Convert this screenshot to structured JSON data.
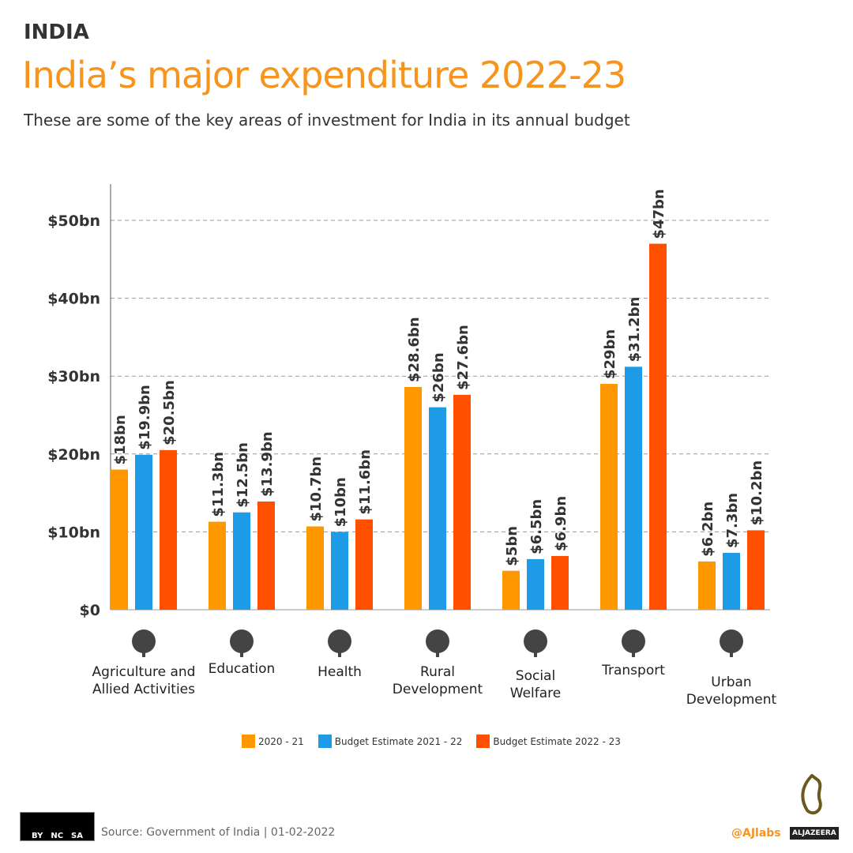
{
  "header": {
    "kicker": "INDIA",
    "title": "India’s major expenditure 2022-23",
    "subtitle": "These are some of the key areas of investment for India in its annual budget"
  },
  "chart_data": {
    "type": "bar",
    "categories": [
      "Agriculture and Allied Activities",
      "Education",
      "Health",
      "Rural Development",
      "Social Welfare",
      "Transport",
      "Urban Development"
    ],
    "category_icons": [
      "tree-icon",
      "graduation-cap-icon",
      "heart-pulse-icon",
      "house-tree-icon",
      "money-bag-hand-icon",
      "route-pin-icon",
      "crane-building-icon"
    ],
    "series": [
      {
        "name": "2020 - 21",
        "color": "#ff9800",
        "values": [
          18,
          11.3,
          10.7,
          28.6,
          5,
          29,
          6.2
        ],
        "labels": [
          "$18bn",
          "$11.3bn",
          "$10.7bn",
          "$28.6bn",
          "$5bn",
          "$29bn",
          "$6.2bn"
        ]
      },
      {
        "name": "Budget Estimate 2021 - 22",
        "color": "#1e9be6",
        "values": [
          19.9,
          12.5,
          10,
          26,
          6.5,
          31.2,
          7.3
        ],
        "labels": [
          "$19.9bn",
          "$12.5bn",
          "$10bn",
          "$26bn",
          "$6.5bn",
          "$31.2bn",
          "$7.3bn"
        ]
      },
      {
        "name": "Budget Estimate 2022 - 23",
        "color": "#ff5000",
        "values": [
          20.5,
          13.9,
          11.6,
          27.6,
          6.9,
          47,
          10.2
        ],
        "labels": [
          "$20.5bn",
          "$13.9bn",
          "$11.6bn",
          "$27.6bn",
          "$6.9bn",
          "$47bn",
          "$10.2bn"
        ]
      }
    ],
    "ylim": [
      0,
      55
    ],
    "yticks": [
      0,
      10,
      20,
      30,
      40,
      50
    ],
    "ytick_labels": [
      "$0",
      "$10bn",
      "$20bn",
      "$30bn",
      "$40bn",
      "$50bn"
    ],
    "grid": true,
    "legend": "bottom"
  },
  "footer": {
    "source": "Source: Government of India | 01-02-2022",
    "handle": "@AJlabs",
    "brand": "ALJAZEERA",
    "license": [
      "BY",
      "NC",
      "SA"
    ]
  }
}
